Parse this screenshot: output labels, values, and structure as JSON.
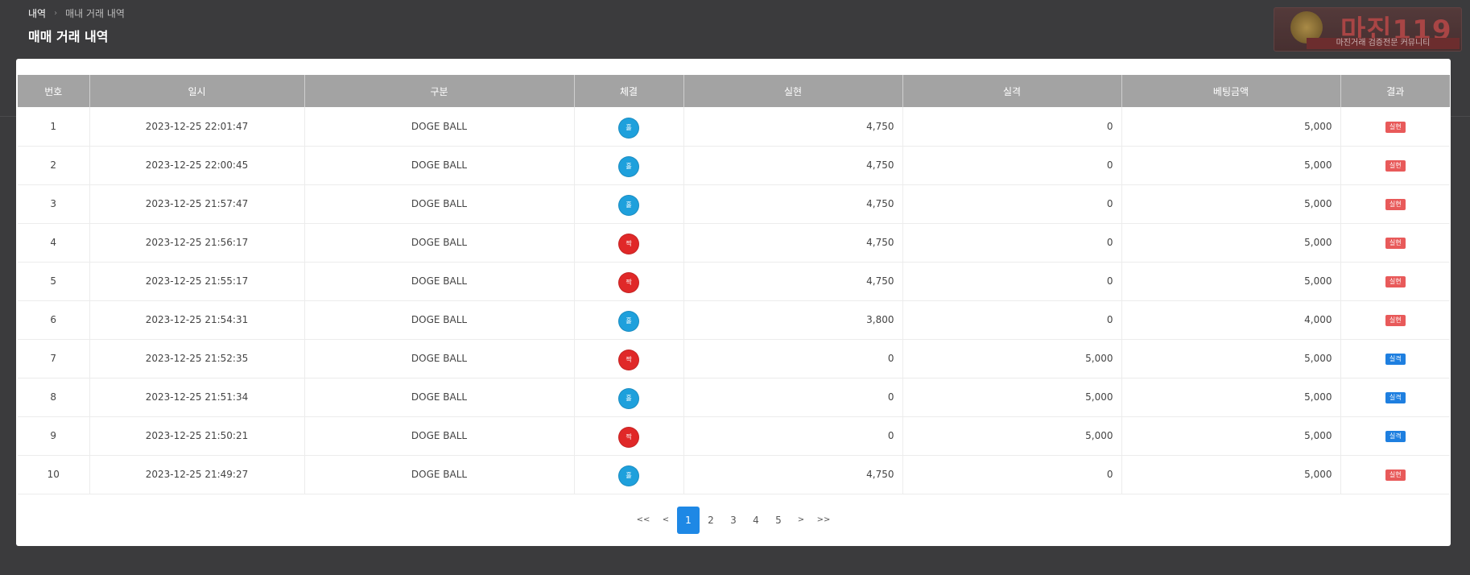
{
  "breadcrumb": {
    "home": "내역",
    "current": "매내 거래 내역"
  },
  "page_title": "매매 거래 내역",
  "watermark": {
    "title": "마진119",
    "subtitle": "마진거래 검증전문 커뮤니티"
  },
  "colors": {
    "blue_dot": "#1ea0dc",
    "red_dot": "#e02828",
    "badge_realized": "#e85a5a",
    "badge_lost": "#1e7fe0",
    "pagination_active": "#1e88e5"
  },
  "table": {
    "headers": [
      "번호",
      "일시",
      "구분",
      "체결",
      "실현",
      "실격",
      "베팅금액",
      "결과"
    ],
    "rows": [
      {
        "no": "1",
        "datetime": "2023-12-25 22:01:47",
        "type": "DOGE BALL",
        "fill_label": "홀",
        "fill_color": "blue",
        "realized": "4,750",
        "lost": "0",
        "bet": "5,000",
        "result": "실현",
        "result_kind": "realized"
      },
      {
        "no": "2",
        "datetime": "2023-12-25 22:00:45",
        "type": "DOGE BALL",
        "fill_label": "홀",
        "fill_color": "blue",
        "realized": "4,750",
        "lost": "0",
        "bet": "5,000",
        "result": "실현",
        "result_kind": "realized"
      },
      {
        "no": "3",
        "datetime": "2023-12-25 21:57:47",
        "type": "DOGE BALL",
        "fill_label": "홀",
        "fill_color": "blue",
        "realized": "4,750",
        "lost": "0",
        "bet": "5,000",
        "result": "실현",
        "result_kind": "realized"
      },
      {
        "no": "4",
        "datetime": "2023-12-25 21:56:17",
        "type": "DOGE BALL",
        "fill_label": "짝",
        "fill_color": "red",
        "realized": "4,750",
        "lost": "0",
        "bet": "5,000",
        "result": "실현",
        "result_kind": "realized"
      },
      {
        "no": "5",
        "datetime": "2023-12-25 21:55:17",
        "type": "DOGE BALL",
        "fill_label": "짝",
        "fill_color": "red",
        "realized": "4,750",
        "lost": "0",
        "bet": "5,000",
        "result": "실현",
        "result_kind": "realized"
      },
      {
        "no": "6",
        "datetime": "2023-12-25 21:54:31",
        "type": "DOGE BALL",
        "fill_label": "홀",
        "fill_color": "blue",
        "realized": "3,800",
        "lost": "0",
        "bet": "4,000",
        "result": "실현",
        "result_kind": "realized"
      },
      {
        "no": "7",
        "datetime": "2023-12-25 21:52:35",
        "type": "DOGE BALL",
        "fill_label": "짝",
        "fill_color": "red",
        "realized": "0",
        "lost": "5,000",
        "bet": "5,000",
        "result": "실격",
        "result_kind": "lost"
      },
      {
        "no": "8",
        "datetime": "2023-12-25 21:51:34",
        "type": "DOGE BALL",
        "fill_label": "홀",
        "fill_color": "blue",
        "realized": "0",
        "lost": "5,000",
        "bet": "5,000",
        "result": "실격",
        "result_kind": "lost"
      },
      {
        "no": "9",
        "datetime": "2023-12-25 21:50:21",
        "type": "DOGE BALL",
        "fill_label": "짝",
        "fill_color": "red",
        "realized": "0",
        "lost": "5,000",
        "bet": "5,000",
        "result": "실격",
        "result_kind": "lost"
      },
      {
        "no": "10",
        "datetime": "2023-12-25 21:49:27",
        "type": "DOGE BALL",
        "fill_label": "홀",
        "fill_color": "blue",
        "realized": "4,750",
        "lost": "0",
        "bet": "5,000",
        "result": "실현",
        "result_kind": "realized"
      }
    ]
  },
  "pagination": {
    "first": "<<",
    "prev": "<",
    "next": ">",
    "last": ">>",
    "pages": [
      "1",
      "2",
      "3",
      "4",
      "5"
    ],
    "current": "1"
  }
}
